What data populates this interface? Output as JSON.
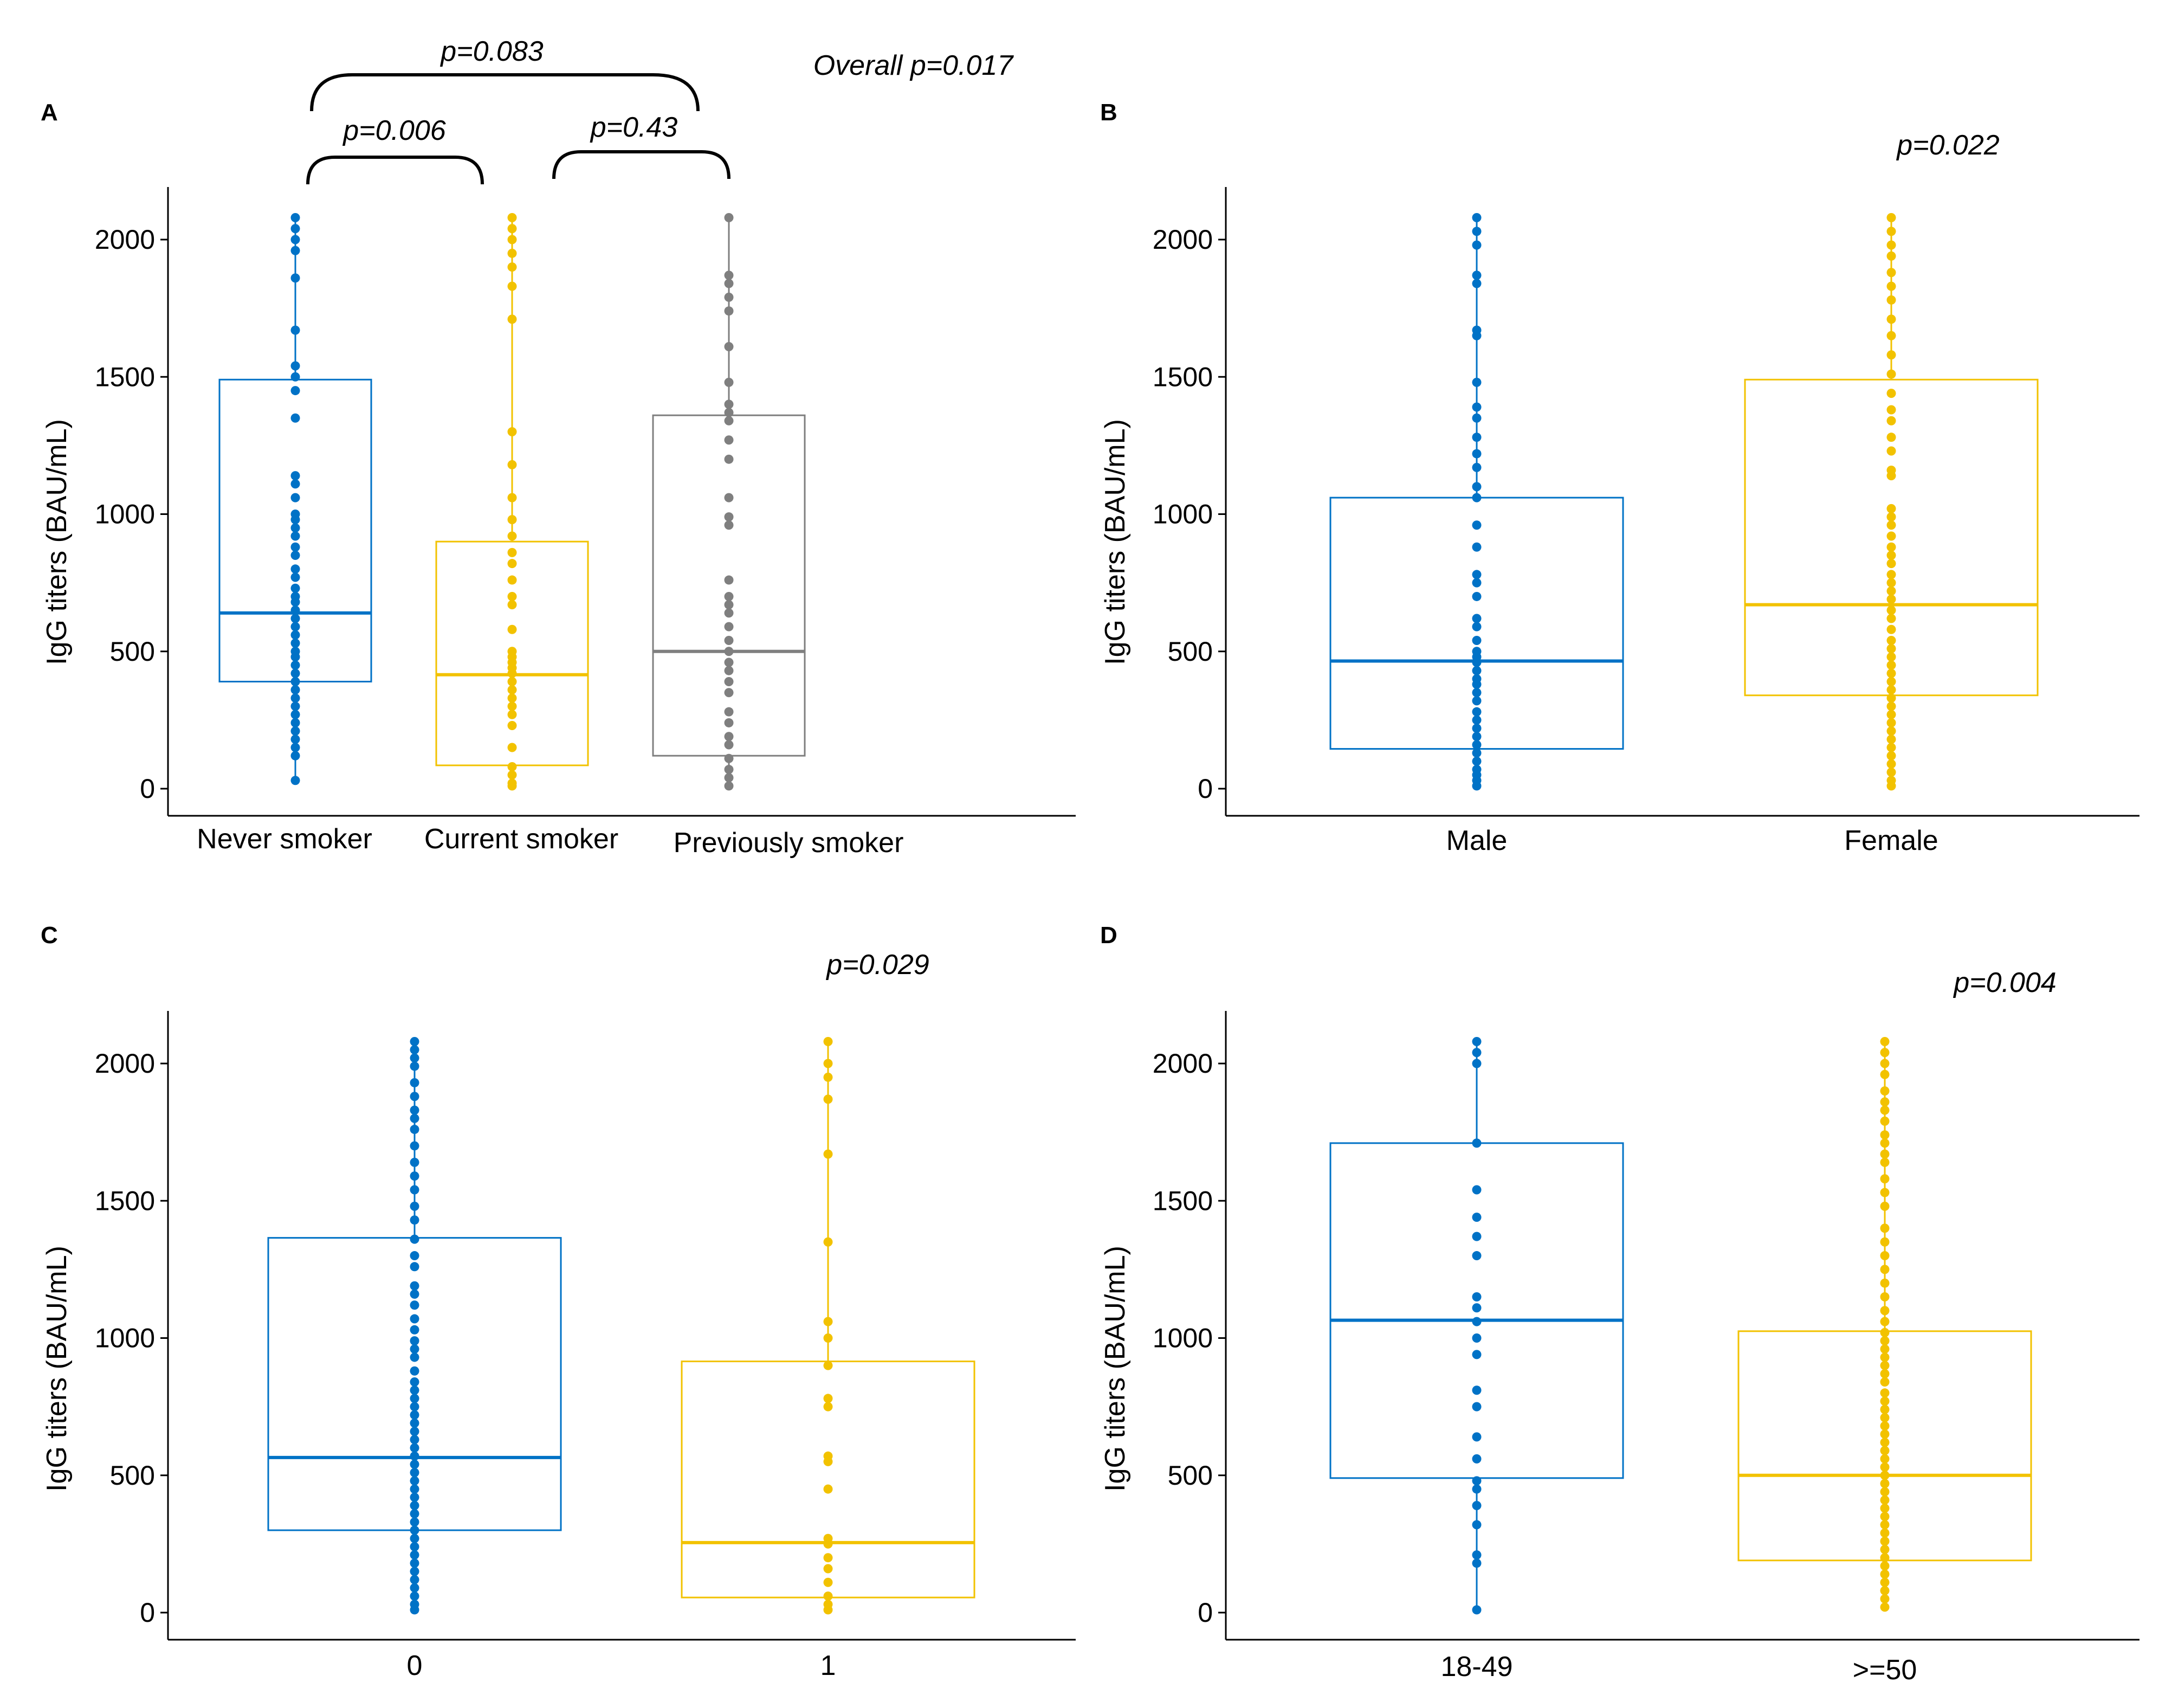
{
  "colors": {
    "blue": "#0072c6",
    "yellow": "#f2c200",
    "gray": "#7f7f7f"
  },
  "chart_data": [
    {
      "panel": "A",
      "type": "box",
      "ylabel": "IgG titers (BAU/mL)",
      "ylim": [
        -100,
        2200
      ],
      "yticks": [
        0,
        500,
        1000,
        1500,
        2000
      ],
      "categories": [
        "Never smoker",
        "Current smoker",
        "Previously smoker"
      ],
      "colors": [
        "#0072c6",
        "#f2c200",
        "#7f7f7f"
      ],
      "boxes": [
        {
          "q1": 390,
          "median": 640,
          "q3": 1490,
          "whisker_low": 30,
          "whisker_high": 2080,
          "points": [
            2080,
            2040,
            2000,
            1960,
            1860,
            1670,
            1540,
            1500,
            1450,
            1350,
            1140,
            1110,
            1060,
            1000,
            980,
            950,
            920,
            880,
            850,
            800,
            770,
            730,
            700,
            680,
            650,
            620,
            590,
            560,
            530,
            500,
            480,
            450,
            420,
            390,
            360,
            330,
            300,
            270,
            240,
            210,
            180,
            150,
            120,
            30
          ]
        },
        {
          "q1": 85,
          "median": 415,
          "q3": 900,
          "whisker_low": 10,
          "whisker_high": 2080,
          "points": [
            2080,
            2040,
            2000,
            1950,
            1900,
            1830,
            1710,
            1300,
            1180,
            1060,
            980,
            920,
            860,
            820,
            760,
            700,
            670,
            580,
            500,
            480,
            460,
            440,
            420,
            390,
            360,
            330,
            300,
            270,
            230,
            150,
            80,
            50,
            20,
            10
          ]
        },
        {
          "q1": 120,
          "median": 500,
          "q3": 1360,
          "whisker_low": 5,
          "whisker_high": 2080,
          "points": [
            2080,
            1870,
            1840,
            1790,
            1740,
            1610,
            1480,
            1400,
            1370,
            1340,
            1270,
            1200,
            1060,
            990,
            960,
            760,
            700,
            670,
            640,
            590,
            540,
            500,
            460,
            430,
            390,
            350,
            280,
            240,
            190,
            160,
            110,
            70,
            40,
            10
          ]
        }
      ],
      "annotations": [
        {
          "label": "p=0.006",
          "from": 0,
          "to": 1
        },
        {
          "label": "p=0.43",
          "from": 1,
          "to": 2
        },
        {
          "label": "p=0.083",
          "from": 0,
          "to": 2
        },
        {
          "label": "Overall p=0.017"
        }
      ]
    },
    {
      "panel": "B",
      "type": "box",
      "ylabel": "IgG titers (BAU/mL)",
      "ylim": [
        -100,
        2200
      ],
      "yticks": [
        0,
        500,
        1000,
        1500,
        2000
      ],
      "categories": [
        "Male",
        "Female"
      ],
      "colors": [
        "#0072c6",
        "#f2c200"
      ],
      "boxes": [
        {
          "q1": 145,
          "median": 465,
          "q3": 1060,
          "whisker_low": 5,
          "whisker_high": 2080,
          "points": [
            2080,
            2030,
            1980,
            1870,
            1840,
            1670,
            1650,
            1480,
            1390,
            1350,
            1280,
            1220,
            1170,
            1100,
            1060,
            960,
            880,
            780,
            750,
            700,
            620,
            590,
            540,
            500,
            480,
            460,
            430,
            400,
            380,
            350,
            320,
            280,
            250,
            220,
            190,
            160,
            130,
            100,
            70,
            50,
            30,
            10
          ]
        },
        {
          "q1": 340,
          "median": 670,
          "q3": 1490,
          "whisker_low": 5,
          "whisker_high": 2080,
          "points": [
            2080,
            2030,
            1980,
            1940,
            1880,
            1830,
            1780,
            1710,
            1650,
            1580,
            1510,
            1440,
            1380,
            1340,
            1280,
            1230,
            1160,
            1140,
            1020,
            990,
            960,
            920,
            880,
            850,
            820,
            780,
            750,
            720,
            690,
            650,
            620,
            580,
            540,
            510,
            480,
            450,
            420,
            390,
            360,
            330,
            300,
            270,
            240,
            210,
            180,
            150,
            120,
            90,
            60,
            30,
            10
          ]
        }
      ],
      "annotations": [
        {
          "label": "p=0.022"
        }
      ]
    },
    {
      "panel": "C",
      "type": "box",
      "ylabel": "IgG titers (BAU/mL)",
      "ylim": [
        -100,
        2200
      ],
      "yticks": [
        0,
        500,
        1000,
        1500,
        2000
      ],
      "categories": [
        "0",
        "1"
      ],
      "colors": [
        "#0072c6",
        "#f2c200"
      ],
      "boxes": [
        {
          "q1": 300,
          "median": 565,
          "q3": 1365,
          "whisker_low": 5,
          "whisker_high": 2080,
          "points": [
            2080,
            2050,
            2020,
            1990,
            1930,
            1880,
            1830,
            1800,
            1760,
            1700,
            1640,
            1590,
            1540,
            1480,
            1430,
            1360,
            1300,
            1260,
            1190,
            1160,
            1120,
            1070,
            1030,
            990,
            960,
            930,
            880,
            840,
            810,
            780,
            750,
            720,
            690,
            660,
            630,
            600,
            570,
            540,
            510,
            480,
            450,
            420,
            390,
            360,
            330,
            300,
            270,
            240,
            210,
            180,
            150,
            120,
            90,
            60,
            30,
            10
          ]
        },
        {
          "q1": 55,
          "median": 255,
          "q3": 915,
          "whisker_low": 5,
          "whisker_high": 2080,
          "points": [
            2080,
            2000,
            1950,
            1870,
            1670,
            1350,
            1060,
            1000,
            900,
            780,
            750,
            570,
            550,
            450,
            270,
            250,
            200,
            160,
            110,
            60,
            30,
            10
          ]
        }
      ],
      "annotations": [
        {
          "label": "p=0.029"
        }
      ]
    },
    {
      "panel": "D",
      "type": "box",
      "ylabel": "IgG titers (BAU/mL)",
      "ylim": [
        -100,
        2200
      ],
      "yticks": [
        0,
        500,
        1000,
        1500,
        2000
      ],
      "categories": [
        "18-49",
        ">=50"
      ],
      "colors": [
        "#0072c6",
        "#f2c200"
      ],
      "boxes": [
        {
          "q1": 490,
          "median": 1065,
          "q3": 1710,
          "whisker_low": 10,
          "whisker_high": 2080,
          "points": [
            2080,
            2040,
            2000,
            1710,
            1540,
            1440,
            1370,
            1300,
            1150,
            1110,
            1060,
            1000,
            940,
            810,
            750,
            640,
            560,
            480,
            450,
            390,
            320,
            210,
            180,
            10
          ]
        },
        {
          "q1": 190,
          "median": 500,
          "q3": 1025,
          "whisker_low": 5,
          "whisker_high": 2080,
          "points": [
            2080,
            2040,
            2000,
            1960,
            1900,
            1860,
            1830,
            1790,
            1740,
            1710,
            1670,
            1640,
            1580,
            1530,
            1480,
            1400,
            1350,
            1300,
            1250,
            1200,
            1150,
            1100,
            1060,
            1020,
            990,
            960,
            930,
            900,
            870,
            840,
            800,
            770,
            740,
            710,
            680,
            650,
            620,
            590,
            560,
            530,
            500,
            470,
            440,
            410,
            380,
            350,
            320,
            290,
            260,
            230,
            200,
            170,
            140,
            110,
            80,
            50,
            20
          ]
        }
      ],
      "annotations": [
        {
          "label": "p=0.004"
        }
      ]
    }
  ]
}
